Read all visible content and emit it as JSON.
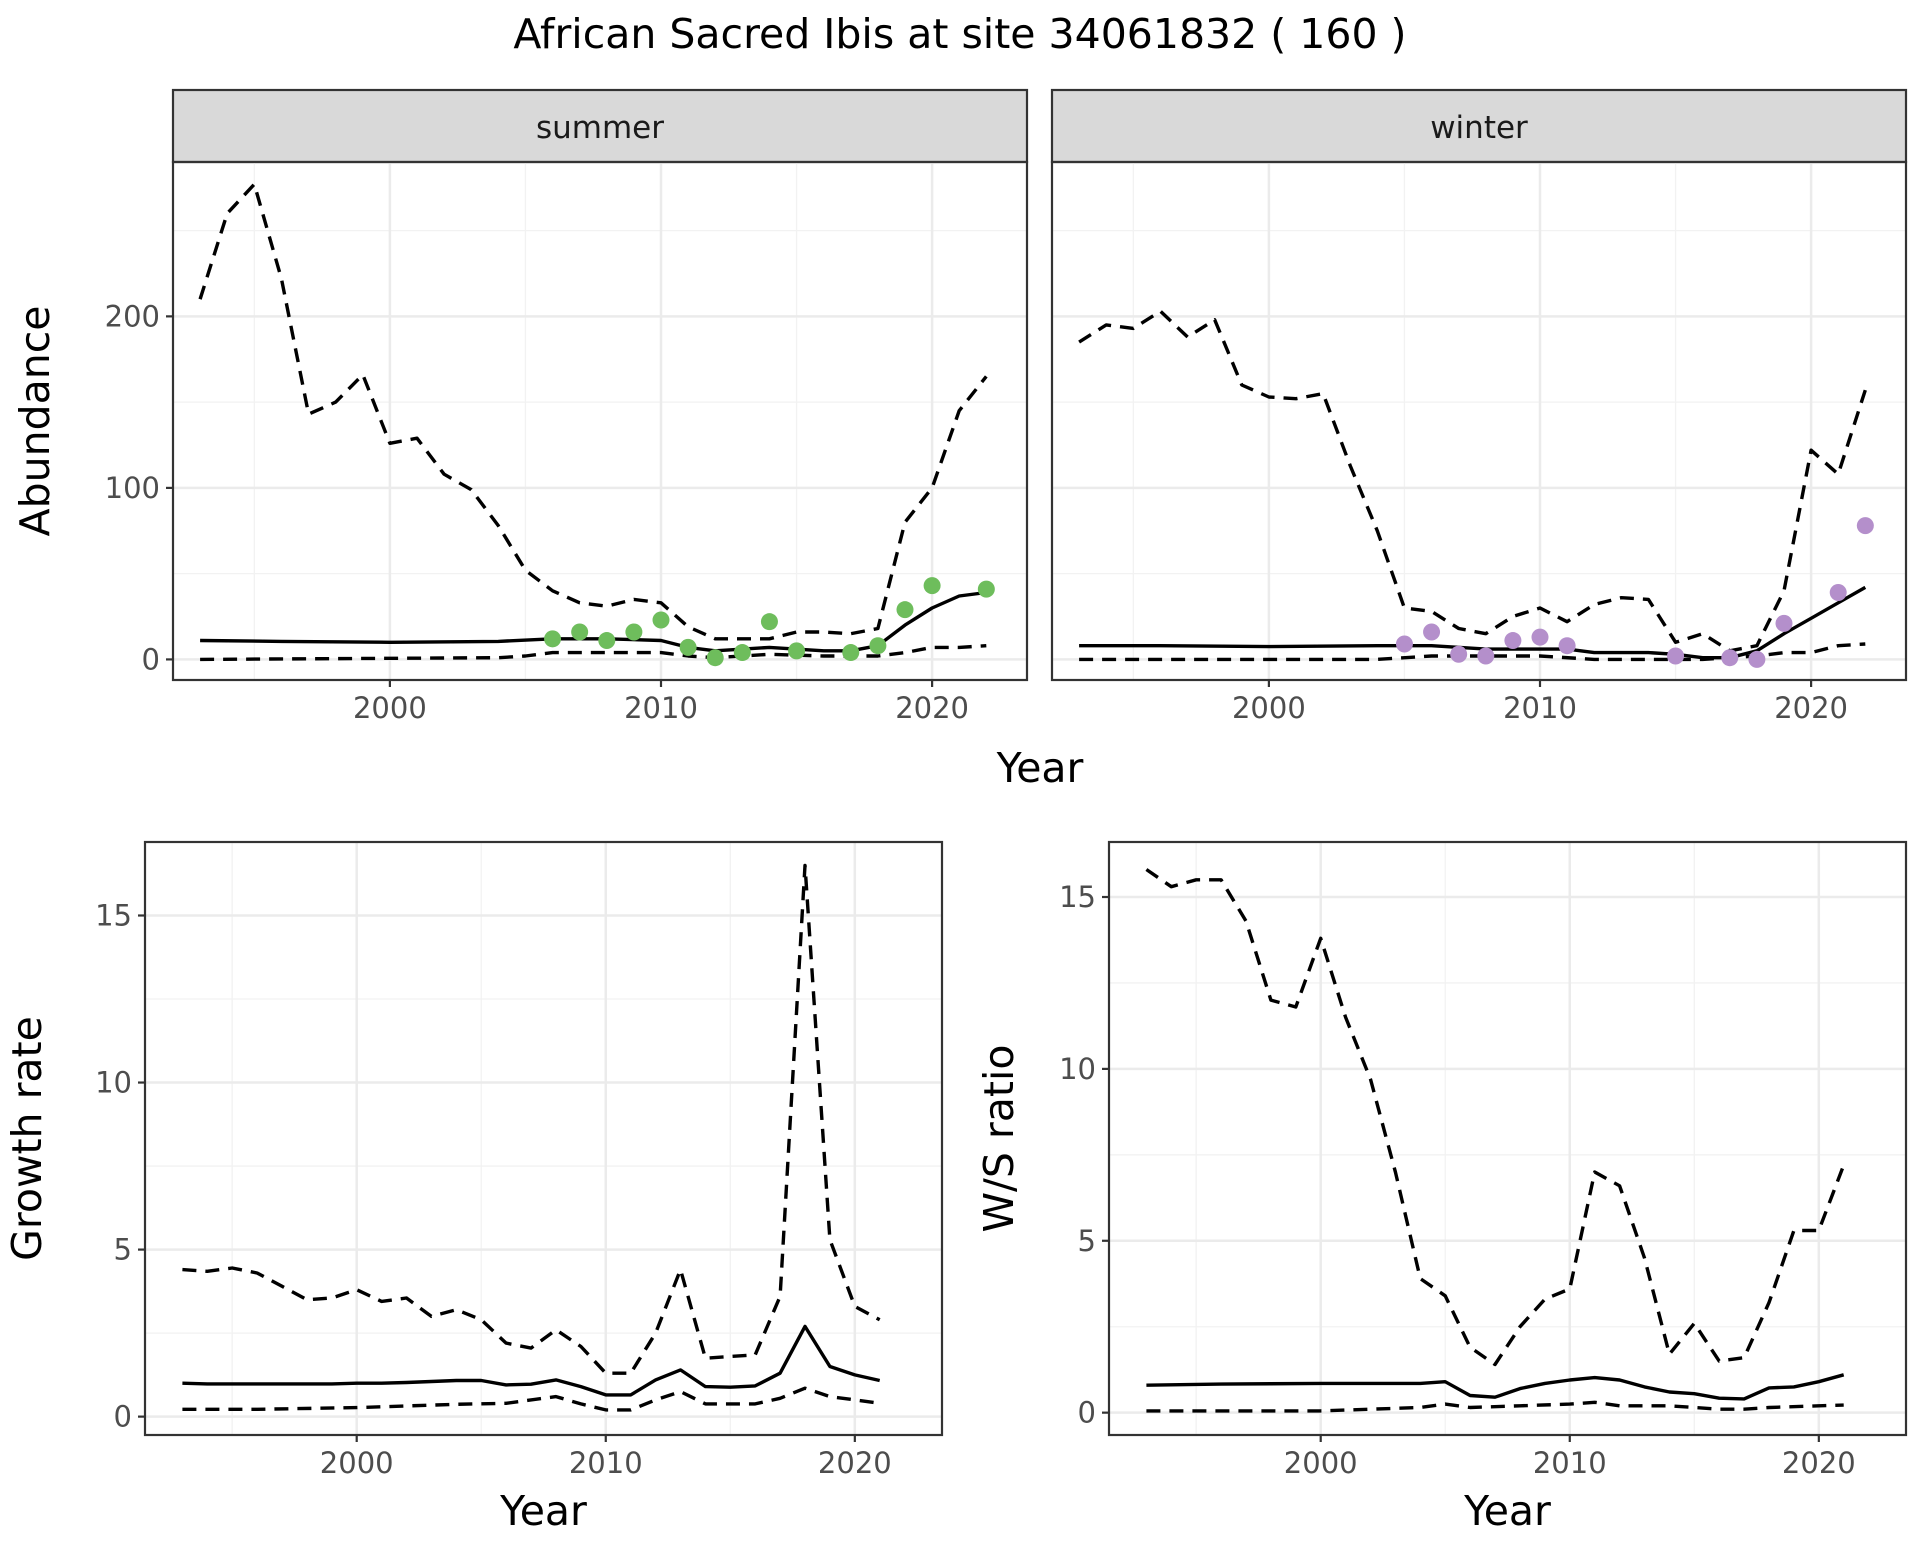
{
  "title": "African Sacred Ibis at site 34061832 ( 160 )",
  "colors": {
    "summer_points": "#6ebd5c",
    "winter_points": "#b48fcb",
    "lines": "#000000",
    "strip": "#d9d9d9"
  },
  "chart_data": [
    {
      "type": "line",
      "panel": "summer",
      "facet_label": "summer",
      "xlabel": "Year",
      "ylabel": "Abundance",
      "xlim": [
        1992,
        2023.5
      ],
      "ylim": [
        -12,
        290
      ],
      "xticks": [
        2000,
        2010,
        2020
      ],
      "yticks": [
        0,
        100,
        200
      ],
      "series": [
        {
          "style": "solid",
          "x": [
            1993,
            1996,
            2000,
            2004,
            2006,
            2008,
            2010,
            2011,
            2012,
            2014,
            2016,
            2017,
            2018,
            2019,
            2020,
            2021,
            2022
          ],
          "y": [
            11,
            10.5,
            10,
            10.5,
            12,
            12,
            11,
            7,
            5,
            7,
            5,
            5,
            8,
            20,
            30,
            37,
            39
          ]
        },
        {
          "style": "dashed",
          "x": [
            1993,
            1994,
            1995,
            1996,
            1997,
            1998,
            1999,
            2000,
            2001,
            2002,
            2003,
            2004,
            2005,
            2006,
            2007,
            2008,
            2009,
            2010,
            2011,
            2012,
            2013,
            2014,
            2015,
            2016,
            2017,
            2018,
            2019,
            2020,
            2021,
            2022
          ],
          "y": [
            210,
            260,
            277,
            222,
            143,
            150,
            166,
            126,
            129,
            108,
            99,
            78,
            52,
            40,
            33,
            31,
            35,
            33,
            19,
            12,
            12,
            12,
            16,
            16,
            15,
            18,
            80,
            100,
            145,
            165
          ]
        },
        {
          "style": "dashed",
          "x": [
            1993,
            2004,
            2005,
            2006,
            2008,
            2010,
            2011,
            2012,
            2014,
            2016,
            2017,
            2018,
            2019,
            2020,
            2021,
            2022
          ],
          "y": [
            0,
            1,
            2,
            4,
            4,
            4,
            2,
            1,
            3,
            2,
            2,
            2,
            4,
            7,
            7,
            8
          ]
        }
      ],
      "points": {
        "x": [
          2006,
          2007,
          2008,
          2009,
          2010,
          2011,
          2012,
          2013,
          2014,
          2015,
          2017,
          2018,
          2019,
          2020,
          2022
        ],
        "y": [
          12,
          16,
          11,
          16,
          23,
          7,
          1,
          4,
          22,
          5,
          4,
          8,
          29,
          43,
          41
        ]
      }
    },
    {
      "type": "line",
      "panel": "winter",
      "facet_label": "winter",
      "xlabel": "Year",
      "ylabel": "Abundance",
      "xlim": [
        1992,
        2023.5
      ],
      "ylim": [
        -12,
        290
      ],
      "xticks": [
        2000,
        2010,
        2020
      ],
      "yticks": [
        0,
        100,
        200
      ],
      "series": [
        {
          "style": "solid",
          "x": [
            1993,
            1996,
            2000,
            2004,
            2006,
            2008,
            2010,
            2011,
            2012,
            2014,
            2015,
            2016,
            2017,
            2018,
            2019,
            2020,
            2021,
            2022
          ],
          "y": [
            8,
            8,
            7.5,
            8,
            8,
            6,
            6,
            6,
            4,
            4,
            3,
            1,
            1,
            5,
            15,
            24,
            33,
            42
          ]
        },
        {
          "style": "dashed",
          "x": [
            1993,
            1994,
            1995,
            1996,
            1997,
            1998,
            1999,
            2000,
            2001,
            2002,
            2003,
            2004,
            2005,
            2006,
            2007,
            2008,
            2009,
            2010,
            2011,
            2012,
            2013,
            2014,
            2015,
            2016,
            2017,
            2018,
            2019,
            2020,
            2021,
            2022
          ],
          "y": [
            185,
            195,
            193,
            203,
            188,
            198,
            160,
            153,
            152,
            155,
            113,
            75,
            30,
            28,
            18,
            15,
            25,
            30,
            22,
            32,
            36,
            35,
            10,
            15,
            5,
            8,
            40,
            122,
            108,
            157
          ]
        },
        {
          "style": "dashed",
          "x": [
            1993,
            2004,
            2006,
            2008,
            2010,
            2012,
            2014,
            2016,
            2018,
            2019,
            2020,
            2021,
            2022
          ],
          "y": [
            0,
            0,
            2,
            2,
            2,
            0,
            0,
            0,
            2,
            4,
            4,
            8,
            9
          ]
        }
      ],
      "points": {
        "x": [
          2005,
          2006,
          2007,
          2008,
          2009,
          2010,
          2011,
          2015,
          2017,
          2018,
          2019,
          2021,
          2022
        ],
        "y": [
          9,
          16,
          3,
          2,
          11,
          13,
          8,
          2,
          1,
          0,
          21,
          39,
          78
        ]
      }
    },
    {
      "type": "line",
      "panel": "growth",
      "xlabel": "Year",
      "ylabel": "Growth rate",
      "xlim": [
        1991.5,
        2023.5
      ],
      "ylim": [
        -0.55,
        17.2
      ],
      "xticks": [
        2000,
        2010,
        2020
      ],
      "yticks": [
        0,
        5,
        10,
        15
      ],
      "series": [
        {
          "style": "solid",
          "x": [
            1993,
            1994,
            1995,
            1996,
            1997,
            1998,
            1999,
            2000,
            2001,
            2002,
            2003,
            2004,
            2005,
            2006,
            2007,
            2008,
            2009,
            2010,
            2011,
            2012,
            2013,
            2014,
            2015,
            2016,
            2017,
            2018,
            2019,
            2020,
            2021
          ],
          "y": [
            1,
            0.98,
            0.98,
            0.98,
            0.98,
            0.98,
            0.98,
            1,
            1,
            1.02,
            1.05,
            1.08,
            1.08,
            0.95,
            0.97,
            1.1,
            0.9,
            0.65,
            0.65,
            1.1,
            1.4,
            0.9,
            0.88,
            0.92,
            1.3,
            2.7,
            1.5,
            1.25,
            1.08
          ]
        },
        {
          "style": "dashed",
          "x": [
            1993,
            1994,
            1995,
            1996,
            1997,
            1998,
            1999,
            2000,
            2001,
            2002,
            2003,
            2004,
            2005,
            2006,
            2007,
            2008,
            2009,
            2010,
            2011,
            2012,
            2013,
            2014,
            2015,
            2016,
            2017,
            2018,
            2019,
            2020,
            2021
          ],
          "y": [
            4.4,
            4.35,
            4.45,
            4.3,
            3.9,
            3.5,
            3.55,
            3.8,
            3.45,
            3.55,
            3.0,
            3.2,
            2.9,
            2.2,
            2.05,
            2.6,
            2.1,
            1.3,
            1.3,
            2.5,
            4.4,
            1.75,
            1.8,
            1.85,
            3.6,
            16.5,
            5.3,
            3.3,
            2.9
          ]
        },
        {
          "style": "dashed",
          "x": [
            1993,
            1996,
            2000,
            2004,
            2006,
            2008,
            2009,
            2010,
            2011,
            2012,
            2013,
            2014,
            2016,
            2017,
            2018,
            2019,
            2020,
            2021
          ],
          "y": [
            0.22,
            0.22,
            0.27,
            0.37,
            0.4,
            0.6,
            0.38,
            0.2,
            0.2,
            0.5,
            0.75,
            0.38,
            0.38,
            0.55,
            0.85,
            0.6,
            0.5,
            0.4
          ]
        }
      ]
    },
    {
      "type": "line",
      "panel": "ratio",
      "xlabel": "Year",
      "ylabel": "W/S ratio",
      "xlim": [
        1991.5,
        2023.5
      ],
      "ylim": [
        -0.65,
        16.6
      ],
      "xticks": [
        2000,
        2010,
        2020
      ],
      "yticks": [
        0,
        5,
        10,
        15
      ],
      "series": [
        {
          "style": "solid",
          "x": [
            1993,
            1996,
            2000,
            2004,
            2005,
            2006,
            2007,
            2008,
            2009,
            2010,
            2011,
            2012,
            2013,
            2014,
            2015,
            2016,
            2017,
            2018,
            2019,
            2020,
            2021
          ],
          "y": [
            0.8,
            0.83,
            0.85,
            0.85,
            0.9,
            0.5,
            0.45,
            0.7,
            0.85,
            0.95,
            1.02,
            0.95,
            0.75,
            0.6,
            0.55,
            0.42,
            0.4,
            0.72,
            0.75,
            0.9,
            1.1
          ]
        },
        {
          "style": "dashed",
          "x": [
            1993,
            1994,
            1995,
            1996,
            1997,
            1998,
            1999,
            2000,
            2001,
            2002,
            2003,
            2004,
            2005,
            2006,
            2007,
            2008,
            2009,
            2010,
            2011,
            2012,
            2013,
            2014,
            2015,
            2016,
            2017,
            2018,
            2019,
            2020,
            2021
          ],
          "y": [
            15.8,
            15.3,
            15.5,
            15.5,
            14.3,
            12.0,
            11.8,
            13.8,
            11.5,
            9.7,
            7.0,
            3.9,
            3.4,
            1.9,
            1.4,
            2.5,
            3.3,
            3.6,
            7.0,
            6.6,
            4.5,
            1.7,
            2.6,
            1.5,
            1.6,
            3.2,
            5.3,
            5.3,
            7.2
          ]
        },
        {
          "style": "dashed",
          "x": [
            1993,
            2000,
            2004,
            2005,
            2006,
            2008,
            2010,
            2011,
            2012,
            2014,
            2016,
            2017,
            2018,
            2020,
            2021
          ],
          "y": [
            0.05,
            0.05,
            0.15,
            0.25,
            0.15,
            0.2,
            0.25,
            0.3,
            0.2,
            0.2,
            0.1,
            0.1,
            0.15,
            0.2,
            0.22
          ]
        }
      ]
    }
  ]
}
